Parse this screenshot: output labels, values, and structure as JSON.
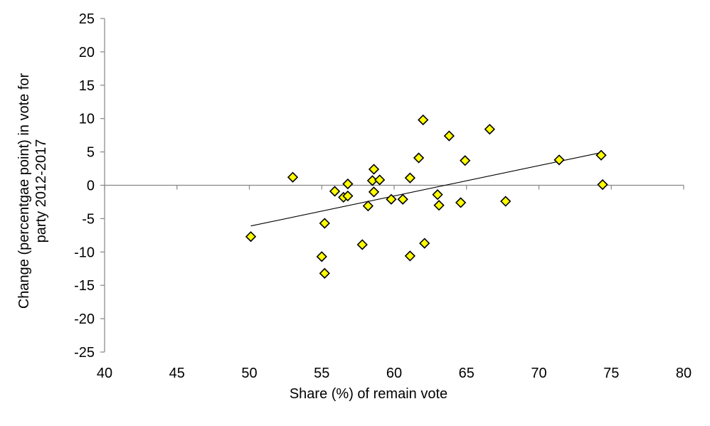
{
  "chart_data": {
    "type": "scatter",
    "title": "",
    "xlabel": "Share (%) of remain vote",
    "ylabel": "Change (percentgae point) in vote for party 2012-2017",
    "ylabel_lines": [
      "Change (percentgae point) in vote for",
      "party 2012-2017"
    ],
    "xlim": [
      40,
      80
    ],
    "ylim": [
      -25,
      25
    ],
    "xticks": [
      40,
      45,
      50,
      55,
      60,
      65,
      70,
      75,
      80
    ],
    "yticks": [
      -25,
      -20,
      -15,
      -10,
      -5,
      0,
      5,
      10,
      15,
      20,
      25
    ],
    "grid": false,
    "legend": "none",
    "marker": {
      "shape": "diamond",
      "fill": "#FFFF00",
      "stroke": "#000000"
    },
    "trendline": {
      "type": "linear",
      "x": [
        50.1,
        74.3
      ],
      "y": [
        -6.1,
        4.9
      ],
      "color": "#000000"
    },
    "series": [
      {
        "points": [
          [
            50.1,
            -7.7
          ],
          [
            53.0,
            1.2
          ],
          [
            55.0,
            -10.7
          ],
          [
            55.2,
            -5.7
          ],
          [
            55.2,
            -13.2
          ],
          [
            55.9,
            -0.9
          ],
          [
            56.5,
            -1.8
          ],
          [
            56.8,
            -1.6
          ],
          [
            56.8,
            0.2
          ],
          [
            57.8,
            -8.9
          ],
          [
            58.2,
            -3.1
          ],
          [
            58.5,
            0.7
          ],
          [
            58.6,
            2.4
          ],
          [
            58.6,
            -1.0
          ],
          [
            59.0,
            0.8
          ],
          [
            59.8,
            -2.1
          ],
          [
            60.6,
            -2.1
          ],
          [
            61.1,
            -10.6
          ],
          [
            61.1,
            1.1
          ],
          [
            61.7,
            4.1
          ],
          [
            62.0,
            9.8
          ],
          [
            62.1,
            -8.7
          ],
          [
            63.0,
            -1.4
          ],
          [
            63.1,
            -3.0
          ],
          [
            63.8,
            7.4
          ],
          [
            64.6,
            -2.6
          ],
          [
            64.9,
            3.7
          ],
          [
            66.6,
            8.4
          ],
          [
            67.7,
            -2.4
          ],
          [
            71.4,
            3.8
          ],
          [
            74.3,
            4.5
          ],
          [
            74.4,
            0.1
          ]
        ]
      }
    ]
  }
}
